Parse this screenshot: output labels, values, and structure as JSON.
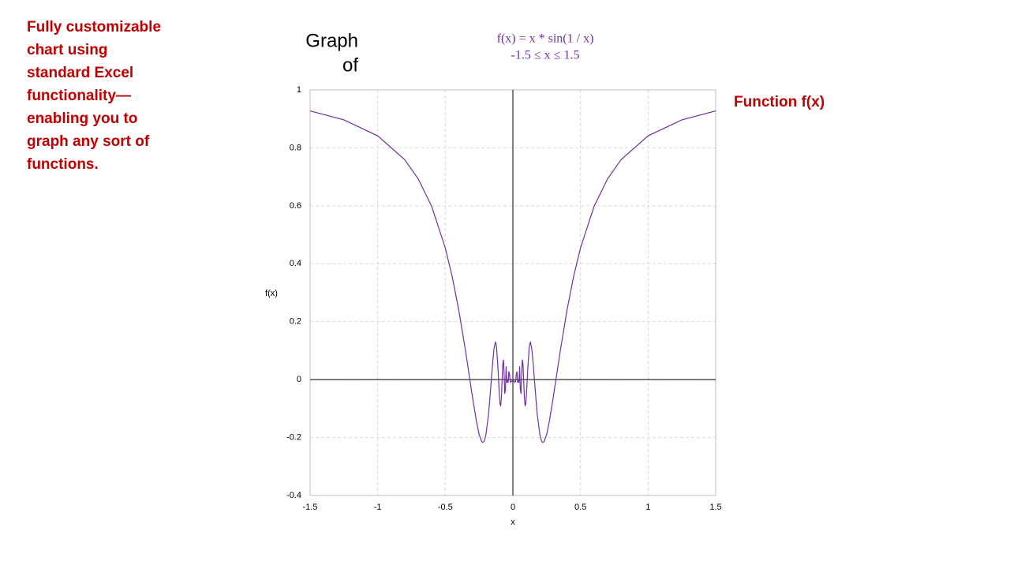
{
  "chart_data": {
    "type": "line",
    "title": [
      "Graph",
      "of"
    ],
    "subtitle": [
      "f(x) = x * sin(1 / x)",
      "-1.5 ≤ x ≤ 1.5"
    ],
    "annotation": [
      "Fully customizable",
      "chart using",
      "standard Excel",
      "functionality—",
      "enabling you to",
      "graph any sort of",
      "functions."
    ],
    "x_label": "x",
    "y_label": "f(x)",
    "x": [
      -1.5,
      -1.25,
      -1.0,
      -0.8,
      -0.7,
      -0.6,
      -0.5,
      -0.45,
      -0.4,
      -0.35,
      -0.32,
      -0.3,
      -0.27,
      -0.25,
      -0.23,
      -0.22,
      -0.21,
      -0.2,
      -0.18,
      -0.16,
      -0.15,
      -0.14,
      -0.13,
      -0.125,
      -0.12,
      -0.11,
      -0.1,
      -0.095,
      -0.09,
      -0.085,
      -0.08,
      -0.075,
      -0.07,
      -0.065,
      -0.06,
      -0.055,
      -0.05,
      -0.045,
      -0.04,
      -0.035,
      -0.03,
      -0.025,
      -0.02,
      -0.015,
      -0.01,
      -0.005,
      0,
      0.005,
      0.01,
      0.015,
      0.02,
      0.025,
      0.03,
      0.035,
      0.04,
      0.045,
      0.05,
      0.055,
      0.06,
      0.065,
      0.07,
      0.075,
      0.08,
      0.085,
      0.09,
      0.095,
      0.1,
      0.11,
      0.12,
      0.125,
      0.13,
      0.14,
      0.15,
      0.16,
      0.18,
      0.2,
      0.21,
      0.22,
      0.23,
      0.25,
      0.27,
      0.3,
      0.32,
      0.35,
      0.4,
      0.45,
      0.5,
      0.6,
      0.7,
      0.8,
      1.0,
      1.25,
      1.5
    ],
    "series": [
      {
        "name": "Function f(x)",
        "color": "#7030a0",
        "values": [
          0.9276,
          0.8967,
          0.8415,
          0.7592,
          0.6929,
          0.5972,
          0.4546,
          0.3578,
          0.2394,
          0.098,
          0.0053,
          -0.0572,
          -0.143,
          -0.1892,
          -0.2147,
          -0.2169,
          -0.2098,
          -0.1918,
          -0.1195,
          -0.0053,
          0.0561,
          0.1058,
          0.1286,
          0.1237,
          0.1065,
          0.0365,
          -0.0544,
          -0.0847,
          -0.0894,
          -0.061,
          -0.0053,
          0.052,
          0.0692,
          0.0207,
          -0.0491,
          -0.0341,
          0.0456,
          -0.0103,
          -0.0053,
          -0.0102,
          0.0282,
          0.0186,
          -0.0052,
          -0.0096,
          -0.0051,
          -0.0044,
          0,
          -0.0044,
          -0.0051,
          -0.0096,
          -0.0052,
          0.0186,
          0.0282,
          -0.0102,
          -0.0053,
          -0.0103,
          0.0456,
          -0.0341,
          -0.0491,
          0.0207,
          0.0692,
          0.052,
          -0.0053,
          -0.061,
          -0.0894,
          -0.0847,
          -0.0544,
          0.0365,
          0.1065,
          0.1237,
          0.1286,
          0.1058,
          0.0561,
          -0.0053,
          -0.1195,
          -0.1918,
          -0.2098,
          -0.2169,
          -0.2147,
          -0.1892,
          -0.143,
          -0.0572,
          0.0053,
          0.098,
          0.2394,
          0.3578,
          0.4546,
          0.5972,
          0.6929,
          0.7592,
          0.8415,
          0.8967,
          0.9276
        ]
      }
    ],
    "xlim": [
      -1.5,
      1.5
    ],
    "xticks": [
      -1.5,
      -1,
      -0.5,
      0,
      0.5,
      1,
      1.5
    ],
    "ylim": [
      -0.4,
      1
    ],
    "yticks": [
      -0.4,
      -0.2,
      0,
      0.2,
      0.4,
      0.6,
      0.8,
      1
    ],
    "grid": true,
    "text_color": "#c00000"
  }
}
